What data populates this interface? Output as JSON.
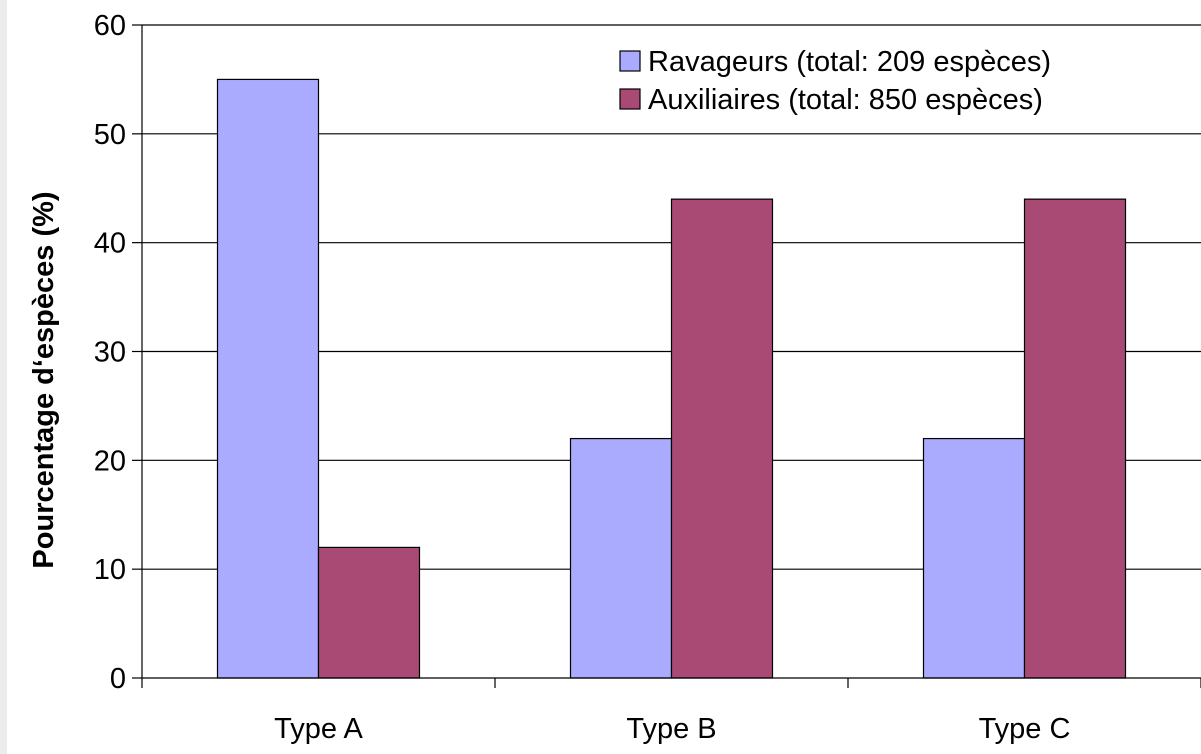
{
  "chart_data": {
    "type": "bar",
    "categories": [
      "Type A",
      "Type B",
      "Type C"
    ],
    "series": [
      {
        "name": "Ravageurs (total: 209 espèces)",
        "values": [
          55,
          22,
          22
        ],
        "color": "#aaaaff"
      },
      {
        "name": "Auxiliaires (total: 850 espèces)",
        "values": [
          12,
          44,
          44
        ],
        "color": "#a84a74"
      }
    ],
    "ylabel": "Pourcentage d‘espèces (%)",
    "xlabel": "",
    "ylim": [
      0,
      60
    ],
    "yticks": [
      0,
      10,
      20,
      30,
      40,
      50,
      60
    ],
    "grid": true,
    "legend_position": "top-right"
  }
}
